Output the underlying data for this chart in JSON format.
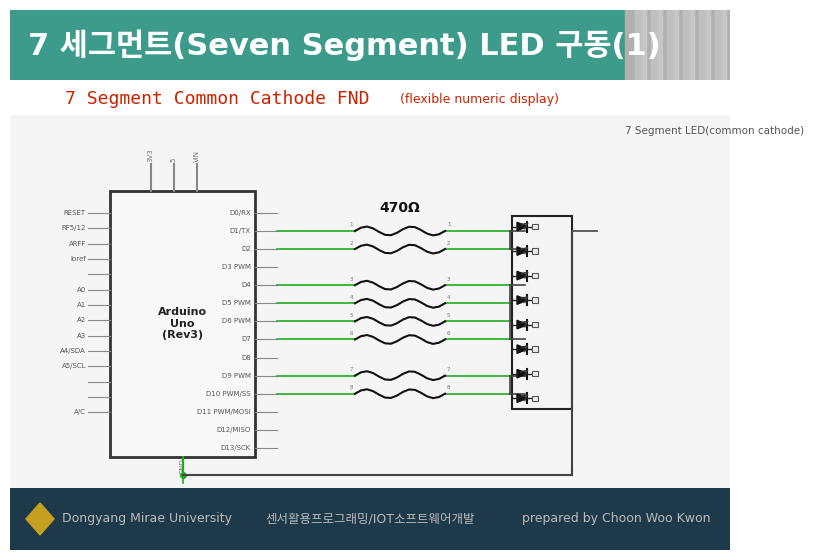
{
  "title": "7 세그먼트(Seven Segment) LED 구동(1)",
  "title_bg": "#3d9b8c",
  "title_color": "#ffffff",
  "title_fontsize": 22,
  "subtitle": "7 Segment Common Cathode FND",
  "subtitle_note": "(flexible numeric display)",
  "subtitle_color": "#cc2200",
  "subtitle_fontsize": 13,
  "subtitle_note_fontsize": 9,
  "footer_bg": "#1e3a4a",
  "footer_color": "#bbbbbb",
  "footer_left": "Dongyang Mirae University",
  "footer_center": "센서활용프로그래밍/IOT소프트웨어개발",
  "footer_right": "prepared by Choon Woo Kwon",
  "footer_fontsize": 9,
  "bg_color": "#f0f0f0",
  "diagram_note": "7 Segment LED(common cathode)",
  "diagram_note_color": "#555555",
  "diagram_note_fontsize": 7.5,
  "resistor_label": "470Ω",
  "arduino_label": [
    "Arduino",
    "Uno",
    "(Rev3)"
  ],
  "header_image_color": "#b0b0b0",
  "wire_green": "#22aa22",
  "wire_dark": "#444444",
  "board_edge": "#333333",
  "board_fill": "#f8f8f8",
  "left_pins": [
    "RESET",
    "RF5/12",
    "ARFF",
    "Ioref",
    "",
    "A0",
    "A1",
    "A2",
    "A3",
    "A4/SDA",
    "A5/SCL",
    "",
    "",
    "A/C"
  ],
  "right_pins": [
    "D0/RX",
    "D1/TX",
    "D2",
    "D3 PWM",
    "D4",
    "D5 PWM",
    "D6 PWM",
    "D7",
    "D8",
    "D9 PWM",
    "D10 PWM/SS",
    "D11 PWM/MOSI",
    "D12/MISO",
    "D13/SCK"
  ],
  "top_labels": [
    "3V3",
    "5",
    "VIN"
  ],
  "gnd_label": "GND",
  "active_right_pins": [
    1,
    2,
    4,
    5,
    6,
    7,
    9,
    10
  ],
  "num_segments": 8,
  "diamond_color": "#c8a020"
}
